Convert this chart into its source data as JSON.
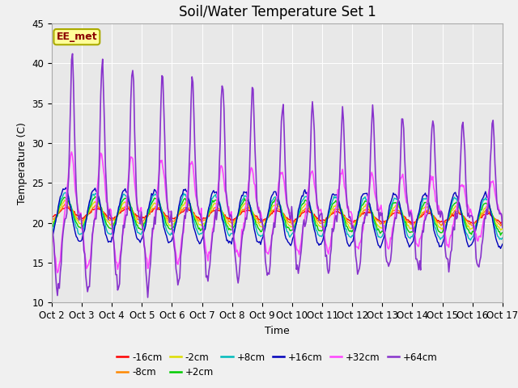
{
  "title": "Soil/Water Temperature Set 1",
  "xlabel": "Time",
  "ylabel": "Temperature (C)",
  "ylim": [
    10,
    45
  ],
  "yticks": [
    10,
    15,
    20,
    25,
    30,
    35,
    40,
    45
  ],
  "xtick_labels": [
    "Oct 2",
    "Oct 3",
    "Oct 4",
    "Oct 5",
    "Oct 6",
    "Oct 7",
    "Oct 8",
    "Oct 9",
    "Oct 10",
    "Oct 11",
    "Oct 12",
    "Oct 13",
    "Oct 14",
    "Oct 15",
    "Oct 16",
    "Oct 17"
  ],
  "annotation_text": "EE_met",
  "annotation_color": "#8B0000",
  "annotation_bg": "#FFFF99",
  "annotation_border": "#AAAA00",
  "bg_color": "#F0F0F0",
  "plot_bg_color": "#E8E8E8",
  "series": [
    {
      "label": "-16cm",
      "color": "#FF0000"
    },
    {
      "label": "-8cm",
      "color": "#FF8800"
    },
    {
      "label": "-2cm",
      "color": "#DDDD00"
    },
    {
      "label": "+2cm",
      "color": "#00CC00"
    },
    {
      "label": "+8cm",
      "color": "#00BBBB"
    },
    {
      "label": "+16cm",
      "color": "#0000BB"
    },
    {
      "label": "+32cm",
      "color": "#FF44FF"
    },
    {
      "label": "+64cm",
      "color": "#8833CC"
    }
  ],
  "grid_color": "#FFFFFF",
  "title_fontsize": 12,
  "axis_label_fontsize": 9,
  "tick_fontsize": 8.5
}
